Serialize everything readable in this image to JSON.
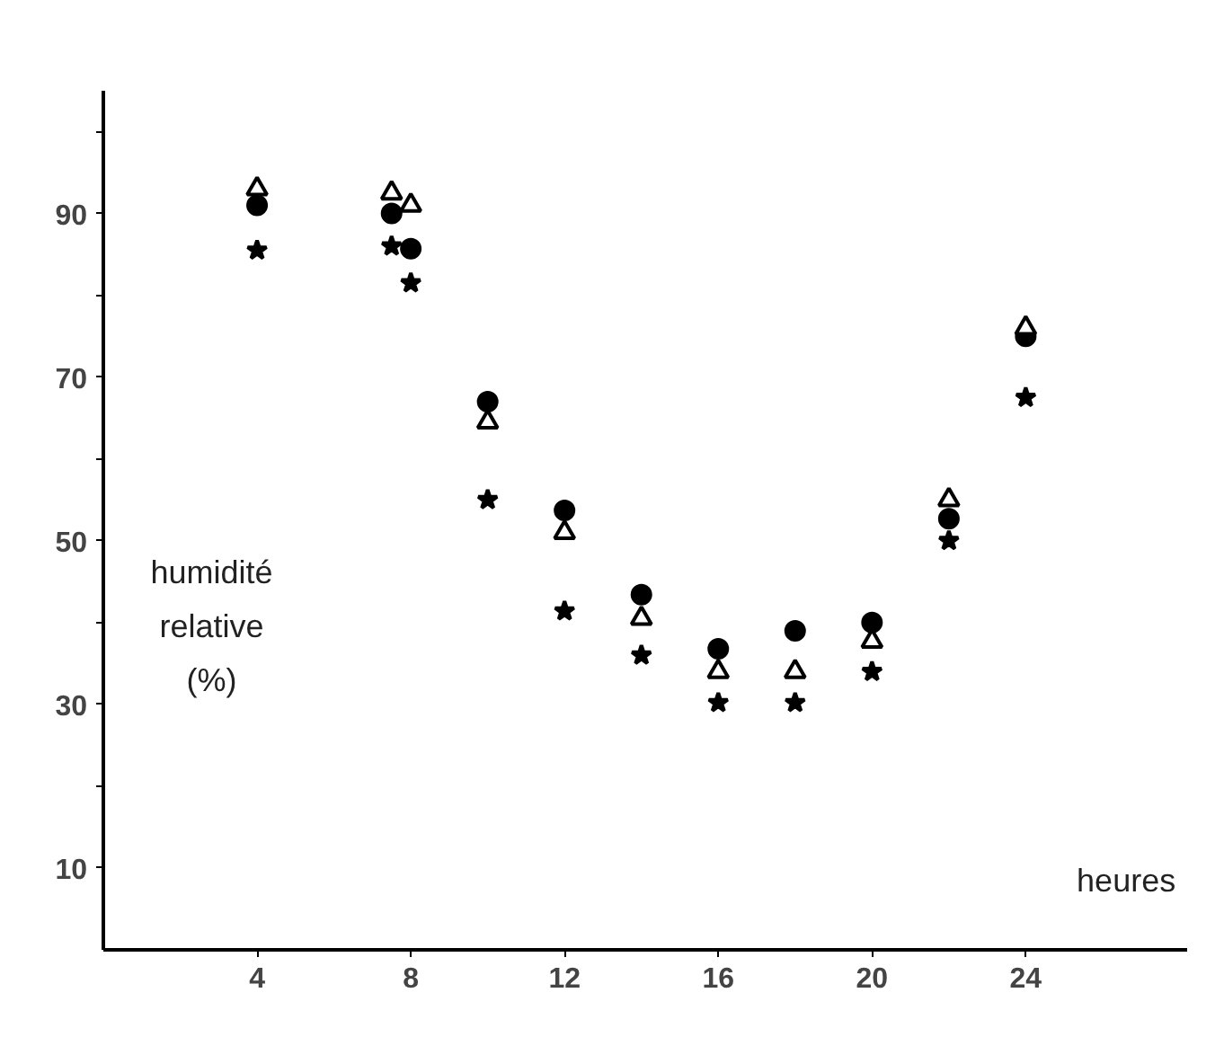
{
  "chart_data": {
    "type": "scatter",
    "xlabel": "heures",
    "ylabel": "humidité relative (%)",
    "xlim": [
      0,
      28.2
    ],
    "ylim": [
      0,
      105
    ],
    "xticks": [
      4,
      8,
      12,
      16,
      20,
      24
    ],
    "yticks": [
      10,
      {
        "value": 20,
        "label": null
      },
      30,
      {
        "value": 40,
        "label": null
      },
      50,
      {
        "value": 60,
        "label": null
      },
      70,
      {
        "value": 80,
        "label": null
      },
      90,
      {
        "value": 100,
        "label": null
      }
    ],
    "grid": false,
    "series": [
      {
        "marker": "circle",
        "color": "#000000",
        "x": [
          4,
          7.5,
          8,
          10,
          12,
          14,
          16,
          18,
          20,
          22,
          24
        ],
        "values": [
          91,
          90,
          85.7,
          67,
          53.7,
          43.4,
          36.8,
          39,
          40,
          52.7,
          75
        ]
      },
      {
        "marker": "triangle",
        "color": "#000000",
        "x": [
          4,
          7.5,
          8,
          10,
          12,
          14,
          16,
          18,
          20,
          22,
          24
        ],
        "values": [
          93,
          92.5,
          91,
          64.5,
          51,
          40.5,
          34,
          34,
          37.7,
          55,
          76
        ]
      },
      {
        "marker": "star",
        "color": "#000000",
        "x": [
          4,
          7.5,
          8,
          10,
          12,
          14,
          16,
          18,
          20,
          22,
          24
        ],
        "values": [
          85.5,
          86,
          81.5,
          55,
          41.4,
          36,
          30.2,
          30.2,
          34,
          50,
          67.5
        ]
      }
    ]
  }
}
